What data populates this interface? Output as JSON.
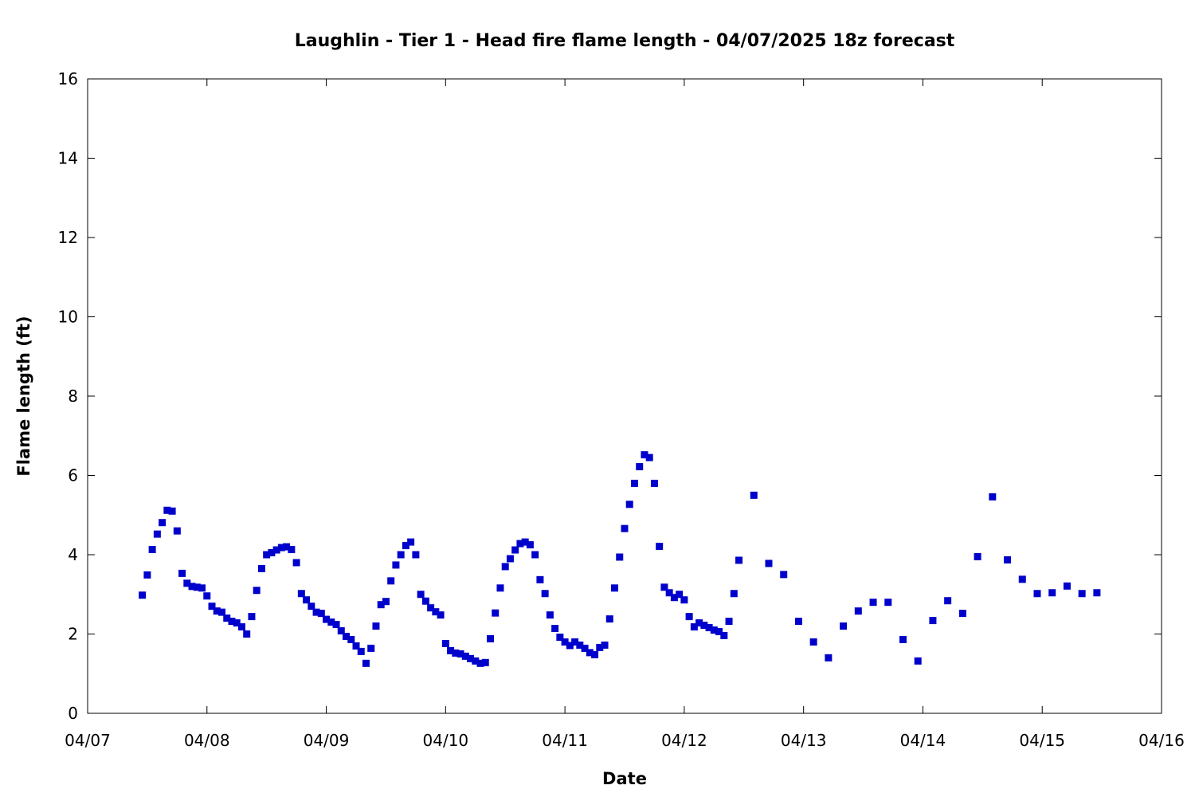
{
  "chart_data": {
    "type": "scatter",
    "title": "Laughlin - Tier 1 - Head fire flame length - 04/07/2025 18z forecast",
    "xlabel": "Date",
    "ylabel": "Flame length (ft)",
    "xlim": [
      "2025-04-07T00:00",
      "2025-04-16T00:00"
    ],
    "ylim": [
      0,
      16
    ],
    "x_ticks": [
      "04/07",
      "04/08",
      "04/09",
      "04/10",
      "04/11",
      "04/12",
      "04/13",
      "04/14",
      "04/15",
      "04/16"
    ],
    "y_ticks": [
      0,
      2,
      4,
      6,
      8,
      10,
      12,
      14,
      16
    ],
    "grid": false,
    "legend": "none",
    "marker": "square",
    "marker_color": "#0000cc",
    "series": [
      {
        "points": [
          [
            "2025-04-07T11:00",
            2.98
          ],
          [
            "2025-04-07T12:00",
            3.49
          ],
          [
            "2025-04-07T13:00",
            4.13
          ],
          [
            "2025-04-07T14:00",
            4.52
          ],
          [
            "2025-04-07T15:00",
            4.81
          ],
          [
            "2025-04-07T16:00",
            5.12
          ],
          [
            "2025-04-07T17:00",
            5.1
          ],
          [
            "2025-04-07T18:00",
            4.6
          ],
          [
            "2025-04-07T19:00",
            3.53
          ],
          [
            "2025-04-07T20:00",
            3.28
          ],
          [
            "2025-04-07T21:00",
            3.2
          ],
          [
            "2025-04-07T22:00",
            3.18
          ],
          [
            "2025-04-07T23:00",
            3.16
          ],
          [
            "2025-04-08T00:00",
            2.96
          ],
          [
            "2025-04-08T01:00",
            2.7
          ],
          [
            "2025-04-08T02:00",
            2.58
          ],
          [
            "2025-04-08T03:00",
            2.55
          ],
          [
            "2025-04-08T04:00",
            2.4
          ],
          [
            "2025-04-08T05:00",
            2.32
          ],
          [
            "2025-04-08T06:00",
            2.28
          ],
          [
            "2025-04-08T07:00",
            2.18
          ],
          [
            "2025-04-08T08:00",
            2.0
          ],
          [
            "2025-04-08T09:00",
            2.44
          ],
          [
            "2025-04-08T10:00",
            3.1
          ],
          [
            "2025-04-08T11:00",
            3.65
          ],
          [
            "2025-04-08T12:00",
            4.0
          ],
          [
            "2025-04-08T13:00",
            4.05
          ],
          [
            "2025-04-08T14:00",
            4.12
          ],
          [
            "2025-04-08T15:00",
            4.18
          ],
          [
            "2025-04-08T16:00",
            4.2
          ],
          [
            "2025-04-08T17:00",
            4.13
          ],
          [
            "2025-04-08T18:00",
            3.8
          ],
          [
            "2025-04-08T19:00",
            3.02
          ],
          [
            "2025-04-08T20:00",
            2.86
          ],
          [
            "2025-04-08T21:00",
            2.7
          ],
          [
            "2025-04-08T22:00",
            2.55
          ],
          [
            "2025-04-08T23:00",
            2.52
          ],
          [
            "2025-04-09T00:00",
            2.37
          ],
          [
            "2025-04-09T01:00",
            2.3
          ],
          [
            "2025-04-09T02:00",
            2.24
          ],
          [
            "2025-04-09T03:00",
            2.08
          ],
          [
            "2025-04-09T04:00",
            1.94
          ],
          [
            "2025-04-09T05:00",
            1.86
          ],
          [
            "2025-04-09T06:00",
            1.7
          ],
          [
            "2025-04-09T07:00",
            1.56
          ],
          [
            "2025-04-09T08:00",
            1.26
          ],
          [
            "2025-04-09T09:00",
            1.64
          ],
          [
            "2025-04-09T10:00",
            2.2
          ],
          [
            "2025-04-09T11:00",
            2.74
          ],
          [
            "2025-04-09T12:00",
            2.82
          ],
          [
            "2025-04-09T13:00",
            3.34
          ],
          [
            "2025-04-09T14:00",
            3.74
          ],
          [
            "2025-04-09T15:00",
            4.0
          ],
          [
            "2025-04-09T16:00",
            4.23
          ],
          [
            "2025-04-09T17:00",
            4.32
          ],
          [
            "2025-04-09T18:00",
            4.0
          ],
          [
            "2025-04-09T19:00",
            3.0
          ],
          [
            "2025-04-09T20:00",
            2.83
          ],
          [
            "2025-04-09T21:00",
            2.66
          ],
          [
            "2025-04-09T22:00",
            2.56
          ],
          [
            "2025-04-09T23:00",
            2.48
          ],
          [
            "2025-04-10T00:00",
            1.76
          ],
          [
            "2025-04-10T01:00",
            1.58
          ],
          [
            "2025-04-10T02:00",
            1.52
          ],
          [
            "2025-04-10T03:00",
            1.5
          ],
          [
            "2025-04-10T04:00",
            1.44
          ],
          [
            "2025-04-10T05:00",
            1.38
          ],
          [
            "2025-04-10T06:00",
            1.32
          ],
          [
            "2025-04-10T07:00",
            1.26
          ],
          [
            "2025-04-10T08:00",
            1.28
          ],
          [
            "2025-04-10T09:00",
            1.88
          ],
          [
            "2025-04-10T10:00",
            2.53
          ],
          [
            "2025-04-10T11:00",
            3.16
          ],
          [
            "2025-04-10T12:00",
            3.7
          ],
          [
            "2025-04-10T13:00",
            3.9
          ],
          [
            "2025-04-10T14:00",
            4.12
          ],
          [
            "2025-04-10T15:00",
            4.28
          ],
          [
            "2025-04-10T16:00",
            4.32
          ],
          [
            "2025-04-10T17:00",
            4.25
          ],
          [
            "2025-04-10T18:00",
            4.0
          ],
          [
            "2025-04-10T19:00",
            3.37
          ],
          [
            "2025-04-10T20:00",
            3.02
          ],
          [
            "2025-04-10T21:00",
            2.48
          ],
          [
            "2025-04-10T22:00",
            2.14
          ],
          [
            "2025-04-10T23:00",
            1.92
          ],
          [
            "2025-04-11T00:00",
            1.8
          ],
          [
            "2025-04-11T01:00",
            1.71
          ],
          [
            "2025-04-11T02:00",
            1.8
          ],
          [
            "2025-04-11T03:00",
            1.72
          ],
          [
            "2025-04-11T04:00",
            1.64
          ],
          [
            "2025-04-11T05:00",
            1.53
          ],
          [
            "2025-04-11T06:00",
            1.48
          ],
          [
            "2025-04-11T07:00",
            1.66
          ],
          [
            "2025-04-11T08:00",
            1.72
          ],
          [
            "2025-04-11T09:00",
            2.38
          ],
          [
            "2025-04-11T10:00",
            3.16
          ],
          [
            "2025-04-11T11:00",
            3.94
          ],
          [
            "2025-04-11T12:00",
            4.66
          ],
          [
            "2025-04-11T13:00",
            5.27
          ],
          [
            "2025-04-11T14:00",
            5.8
          ],
          [
            "2025-04-11T15:00",
            6.22
          ],
          [
            "2025-04-11T16:00",
            6.52
          ],
          [
            "2025-04-11T17:00",
            6.45
          ],
          [
            "2025-04-11T18:00",
            5.8
          ],
          [
            "2025-04-11T19:00",
            4.21
          ],
          [
            "2025-04-11T20:00",
            3.18
          ],
          [
            "2025-04-11T21:00",
            3.04
          ],
          [
            "2025-04-11T22:00",
            2.92
          ],
          [
            "2025-04-11T23:00",
            3.0
          ],
          [
            "2025-04-12T00:00",
            2.86
          ],
          [
            "2025-04-12T01:00",
            2.44
          ],
          [
            "2025-04-12T02:00",
            2.18
          ],
          [
            "2025-04-12T03:00",
            2.28
          ],
          [
            "2025-04-12T04:00",
            2.22
          ],
          [
            "2025-04-12T05:00",
            2.16
          ],
          [
            "2025-04-12T06:00",
            2.1
          ],
          [
            "2025-04-12T07:00",
            2.06
          ],
          [
            "2025-04-12T08:00",
            1.96
          ],
          [
            "2025-04-12T09:00",
            2.32
          ],
          [
            "2025-04-12T10:00",
            3.02
          ],
          [
            "2025-04-12T11:00",
            3.86
          ],
          [
            "2025-04-12T14:00",
            5.5
          ],
          [
            "2025-04-12T17:00",
            3.78
          ],
          [
            "2025-04-12T20:00",
            3.5
          ],
          [
            "2025-04-12T23:00",
            2.32
          ],
          [
            "2025-04-13T02:00",
            1.8
          ],
          [
            "2025-04-13T05:00",
            1.4
          ],
          [
            "2025-04-13T08:00",
            2.2
          ],
          [
            "2025-04-13T11:00",
            2.58
          ],
          [
            "2025-04-13T14:00",
            2.8
          ],
          [
            "2025-04-13T17:00",
            2.8
          ],
          [
            "2025-04-13T20:00",
            1.86
          ],
          [
            "2025-04-13T23:00",
            1.32
          ],
          [
            "2025-04-14T02:00",
            2.34
          ],
          [
            "2025-04-14T05:00",
            2.84
          ],
          [
            "2025-04-14T08:00",
            2.52
          ],
          [
            "2025-04-14T11:00",
            3.95
          ],
          [
            "2025-04-14T14:00",
            5.46
          ],
          [
            "2025-04-14T17:00",
            3.87
          ],
          [
            "2025-04-14T20:00",
            3.38
          ],
          [
            "2025-04-14T23:00",
            3.02
          ],
          [
            "2025-04-15T02:00",
            3.04
          ],
          [
            "2025-04-15T05:00",
            3.21
          ],
          [
            "2025-04-15T08:00",
            3.02
          ],
          [
            "2025-04-15T11:00",
            3.04
          ]
        ]
      }
    ]
  }
}
